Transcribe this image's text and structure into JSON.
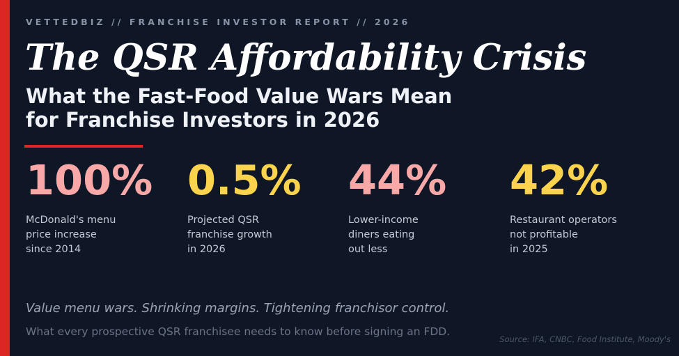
{
  "header": {
    "kicker": "VETTEDBIZ // FRANCHISE INVESTOR REPORT // 2026",
    "title": "The QSR Affordability Crisis",
    "subtitle_lines": [
      "What the Fast-Food Value Wars Mean",
      "for Franchise Investors in 2026"
    ]
  },
  "stats": [
    {
      "value": "100%",
      "color": "#f9a8a8",
      "label_lines": [
        "McDonald's menu",
        "price increase",
        "since 2014"
      ]
    },
    {
      "value": "0.5%",
      "color": "#fcd34d",
      "label_lines": [
        "Projected QSR",
        "franchise growth",
        "in 2026"
      ]
    },
    {
      "value": "44%",
      "color": "#f9a8a8",
      "label_lines": [
        "Lower-income",
        "diners eating",
        "out less"
      ]
    },
    {
      "value": "42%",
      "color": "#fcd34d",
      "label_lines": [
        "Restaurant operators",
        "not profitable",
        "in 2025"
      ]
    }
  ],
  "footer": {
    "tagline": "Value menu wars. Shrinking margins. Tightening franchisor control.",
    "note": "What every prospective QSR franchisee needs to know before signing an FDD.",
    "source": "Source: IFA, CNBC, Food Institute, Moody's"
  },
  "colors": {
    "background": "#0f1727",
    "accent": "#dc2626"
  }
}
